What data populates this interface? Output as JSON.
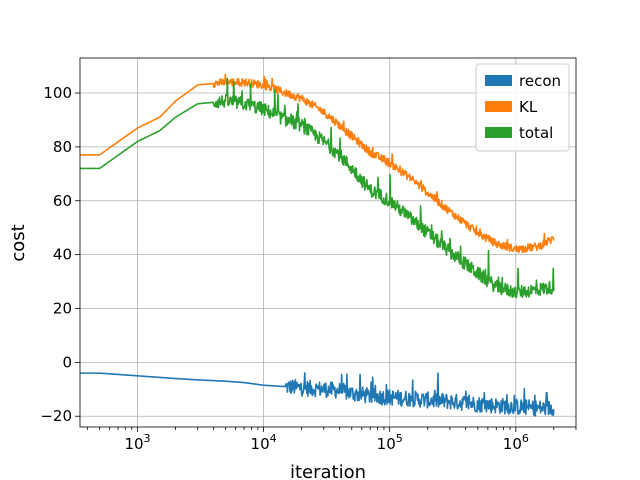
{
  "chart_data": {
    "type": "line",
    "title": "",
    "xlabel": "iteration",
    "ylabel": "cost",
    "xscale": "log",
    "xlim": [
      350,
      3000000
    ],
    "ylim": [
      -24,
      113
    ],
    "grid": true,
    "legend_position": "top-right",
    "x_ticks": [
      {
        "value": 1000,
        "base": "10",
        "exp": "3"
      },
      {
        "value": 10000,
        "base": "10",
        "exp": "4"
      },
      {
        "value": 100000,
        "base": "10",
        "exp": "5"
      },
      {
        "value": 1000000,
        "base": "10",
        "exp": "6"
      }
    ],
    "y_ticks": [
      {
        "value": -20,
        "label": "−20"
      },
      {
        "value": 0,
        "label": "0"
      },
      {
        "value": 20,
        "label": "20"
      },
      {
        "value": 40,
        "label": "40"
      },
      {
        "value": 60,
        "label": "60"
      },
      {
        "value": 80,
        "label": "80"
      },
      {
        "value": 100,
        "label": "100"
      }
    ],
    "series": [
      {
        "name": "recon",
        "color": "#1f77b4",
        "x": [
          350,
          500,
          1000,
          2000,
          3000,
          5000,
          7000,
          10000,
          15000,
          20000,
          30000,
          40000,
          50000,
          70000,
          100000,
          150000,
          200000,
          300000,
          500000,
          700000,
          1000000,
          1500000,
          2000000
        ],
        "y": [
          -4,
          -4,
          -5,
          -6,
          -6.5,
          -7,
          -7.5,
          -8.5,
          -9,
          -9.5,
          -10,
          -10.5,
          -11.5,
          -12.5,
          -13,
          -13.5,
          -14,
          -14.5,
          -15.5,
          -16,
          -16.5,
          -17,
          -17
        ],
        "noise": {
          "start": 15000,
          "amp": 3,
          "spike": 8
        }
      },
      {
        "name": "KL",
        "color": "#ff7f0e",
        "x": [
          350,
          500,
          1000,
          1500,
          2000,
          3000,
          5000,
          7000,
          10000,
          15000,
          20000,
          30000,
          40000,
          50000,
          70000,
          100000,
          150000,
          200000,
          300000,
          500000,
          700000,
          1000000,
          1500000,
          2000000
        ],
        "y": [
          77,
          77,
          87,
          91,
          97,
          103,
          104,
          104,
          103,
          100,
          98,
          93,
          88,
          84,
          78,
          74,
          68,
          63,
          56,
          48,
          44,
          42,
          43,
          46
        ],
        "noise": {
          "start": 4000,
          "amp": 1.5,
          "spike": 3
        }
      },
      {
        "name": "total",
        "color": "#2ca02c",
        "x": [
          350,
          500,
          1000,
          1500,
          2000,
          3000,
          5000,
          7000,
          10000,
          15000,
          20000,
          30000,
          40000,
          50000,
          70000,
          100000,
          150000,
          200000,
          300000,
          500000,
          700000,
          1000000,
          1500000,
          2000000
        ],
        "y": [
          72,
          72,
          82,
          86,
          91,
          96,
          97,
          96,
          94,
          90,
          88,
          82,
          77,
          72,
          64,
          60,
          53,
          48,
          41,
          33,
          28,
          26,
          27,
          28
        ],
        "noise": {
          "start": 4000,
          "amp": 2.5,
          "spike": 9
        }
      }
    ]
  }
}
